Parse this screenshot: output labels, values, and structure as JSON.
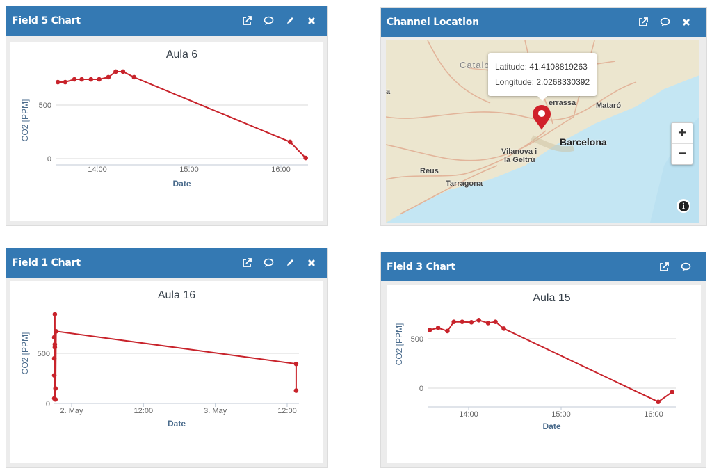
{
  "panels": {
    "field5": {
      "title": "Field 5 Chart"
    },
    "map": {
      "title": "Channel Location"
    },
    "field1": {
      "title": "Field 1 Chart"
    },
    "field3": {
      "title": "Field 3 Chart"
    }
  },
  "icons": {
    "external": "external-link-icon",
    "comment": "comment-icon",
    "edit": "pencil-icon",
    "close": "close-icon"
  },
  "map": {
    "latitude": "Latitude: 41.4108819263",
    "longitude": "Longitude: 2.0268330392",
    "labels": {
      "catalonia": "Catalo",
      "terrassa": "errassa",
      "mataro": "Mataró",
      "barcelona": "Barcelona",
      "vilanova1": "Vilanova i",
      "vilanova2": "la Geltrú",
      "reus": "Reus",
      "tarragona": "Tarragona",
      "edge": "a"
    },
    "zoom_in": "+",
    "zoom_out": "−",
    "info": "i",
    "colors": {
      "land": "#ece6cf",
      "sea": "#c4e6f3",
      "road": "#e2b49a",
      "pin": "#d0202a"
    }
  },
  "colors": {
    "header": "#3479b3",
    "series": "#c8232b",
    "axis_label": "#4a6b8c",
    "grid": "#d8d8d8"
  },
  "chart_data": [
    {
      "type": "line",
      "title": "Aula   6",
      "xlabel": "Date",
      "ylabel": "CO2 [PPM]",
      "x_unit": "hour of day",
      "x_ticks": [
        {
          "v": 14,
          "label": "14:00"
        },
        {
          "v": 15,
          "label": "15:00"
        },
        {
          "v": 16,
          "label": "16:00"
        }
      ],
      "y_ticks": [
        {
          "v": 0,
          "label": "0"
        },
        {
          "v": 500,
          "label": "500"
        }
      ],
      "x": [
        13.57,
        13.65,
        13.75,
        13.83,
        13.93,
        14.02,
        14.12,
        14.2,
        14.28,
        14.4,
        16.1,
        16.27
      ],
      "y": [
        714,
        714,
        740,
        740,
        740,
        740,
        760,
        812,
        812,
        760,
        156,
        6
      ]
    },
    {
      "type": "line",
      "title": "Aula 16",
      "xlabel": "Date",
      "ylabel": "CO2 [PPM]",
      "x_unit": "hours since 2 May 00:00",
      "x_ticks": [
        {
          "v": 0,
          "label": "2. May"
        },
        {
          "v": 12,
          "label": "12:00"
        },
        {
          "v": 24,
          "label": "3. May"
        },
        {
          "v": 36,
          "label": "12:00"
        }
      ],
      "y_ticks": [
        {
          "v": 0,
          "label": "0"
        },
        {
          "v": 500,
          "label": "500"
        }
      ],
      "x": [
        -2.9,
        -2.9,
        -2.9,
        -2.8,
        -2.9,
        -2.8,
        -2.8,
        -2.7,
        -2.7,
        -2.6,
        37.5,
        37.5
      ],
      "y": [
        50,
        280,
        450,
        560,
        660,
        890,
        590,
        150,
        40,
        720,
        395,
        128
      ]
    },
    {
      "type": "line",
      "title": "Aula 15",
      "xlabel": "Date",
      "ylabel": "CO2 [PPM]",
      "x_unit": "hour of day",
      "x_ticks": [
        {
          "v": 14,
          "label": "14:00"
        },
        {
          "v": 15,
          "label": "15:00"
        },
        {
          "v": 16,
          "label": "16:00"
        }
      ],
      "y_ticks": [
        {
          "v": 0,
          "label": "0"
        },
        {
          "v": 500,
          "label": "500"
        }
      ],
      "x": [
        13.58,
        13.67,
        13.77,
        13.84,
        13.93,
        14.03,
        14.11,
        14.21,
        14.29,
        14.38,
        16.05,
        16.2
      ],
      "y": [
        589,
        610,
        578,
        671,
        671,
        667,
        688,
        659,
        671,
        603,
        -139,
        -40
      ]
    }
  ]
}
